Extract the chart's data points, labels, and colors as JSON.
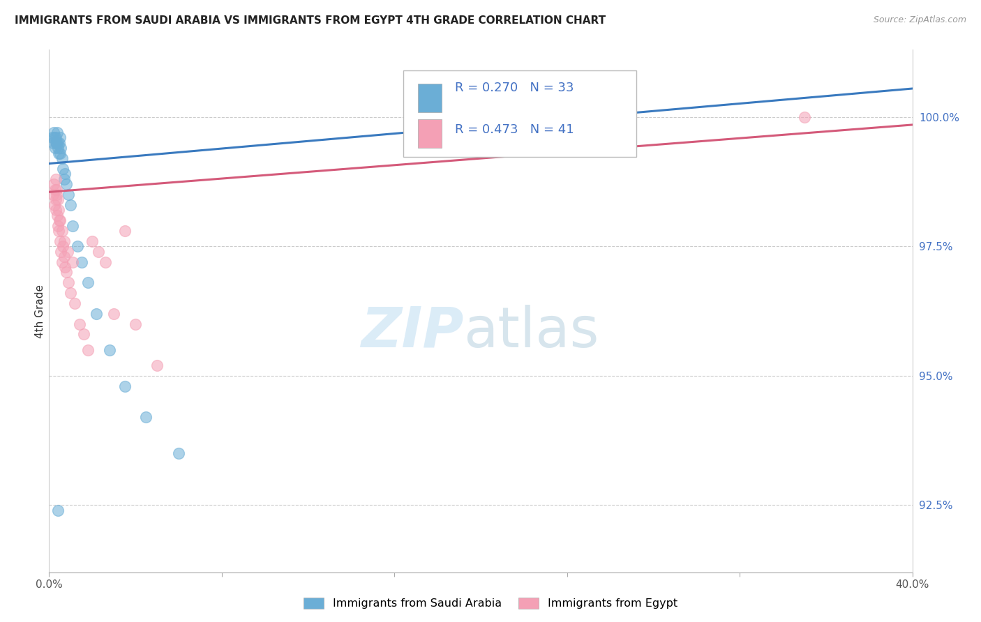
{
  "title": "IMMIGRANTS FROM SAUDI ARABIA VS IMMIGRANTS FROM EGYPT 4TH GRADE CORRELATION CHART",
  "source": "Source: ZipAtlas.com",
  "ylabel": "4th Grade",
  "r_saudi": 0.27,
  "n_saudi": 33,
  "r_egypt": 0.473,
  "n_egypt": 41,
  "legend_saudi": "Immigrants from Saudi Arabia",
  "legend_egypt": "Immigrants from Egypt",
  "xlim": [
    0.0,
    40.0
  ],
  "ylim": [
    91.2,
    101.3
  ],
  "yticks_right": [
    92.5,
    95.0,
    97.5,
    100.0
  ],
  "ytick_labels_right": [
    "92.5%",
    "95.0%",
    "97.5%",
    "100.0%"
  ],
  "color_saudi": "#6baed6",
  "color_egypt": "#f4a0b5",
  "color_saudi_line": "#3a7abf",
  "color_egypt_line": "#d45a7a",
  "color_text_blue": "#4472c4",
  "saudi_scatter_x": [
    0.15,
    0.18,
    0.22,
    0.25,
    0.28,
    0.3,
    0.32,
    0.35,
    0.38,
    0.4,
    0.42,
    0.45,
    0.48,
    0.5,
    0.52,
    0.55,
    0.6,
    0.65,
    0.7,
    0.75,
    0.8,
    0.9,
    1.0,
    1.1,
    1.3,
    1.5,
    1.8,
    2.2,
    2.8,
    3.5,
    4.5,
    6.0,
    0.4
  ],
  "saudi_scatter_y": [
    99.6,
    99.5,
    99.7,
    99.6,
    99.4,
    99.5,
    99.6,
    99.5,
    99.7,
    99.5,
    99.4,
    99.3,
    99.5,
    99.6,
    99.3,
    99.4,
    99.2,
    99.0,
    98.8,
    98.9,
    98.7,
    98.5,
    98.3,
    97.9,
    97.5,
    97.2,
    96.8,
    96.2,
    95.5,
    94.8,
    94.2,
    93.5,
    92.4
  ],
  "egypt_scatter_x": [
    0.18,
    0.22,
    0.25,
    0.28,
    0.3,
    0.32,
    0.35,
    0.38,
    0.42,
    0.45,
    0.48,
    0.5,
    0.55,
    0.6,
    0.65,
    0.7,
    0.75,
    0.8,
    0.85,
    0.9,
    1.0,
    1.1,
    1.2,
    1.4,
    1.6,
    1.8,
    2.0,
    2.3,
    2.6,
    3.0,
    3.5,
    4.0,
    5.0,
    0.3,
    0.35,
    0.4,
    0.45,
    0.5,
    0.6,
    0.7,
    35.0
  ],
  "egypt_scatter_y": [
    98.5,
    98.7,
    98.3,
    98.6,
    98.4,
    98.2,
    98.5,
    98.1,
    97.9,
    97.8,
    98.0,
    97.6,
    97.4,
    97.2,
    97.5,
    97.3,
    97.1,
    97.0,
    97.4,
    96.8,
    96.6,
    97.2,
    96.4,
    96.0,
    95.8,
    95.5,
    97.6,
    97.4,
    97.2,
    96.2,
    97.8,
    96.0,
    95.2,
    98.8,
    98.6,
    98.4,
    98.2,
    98.0,
    97.8,
    97.6,
    100.0
  ],
  "saudi_line_x0": 0.0,
  "saudi_line_y0": 99.1,
  "saudi_line_x1": 40.0,
  "saudi_line_y1": 100.55,
  "egypt_line_x0": 0.0,
  "egypt_line_y0": 98.55,
  "egypt_line_x1": 40.0,
  "egypt_line_y1": 99.85
}
